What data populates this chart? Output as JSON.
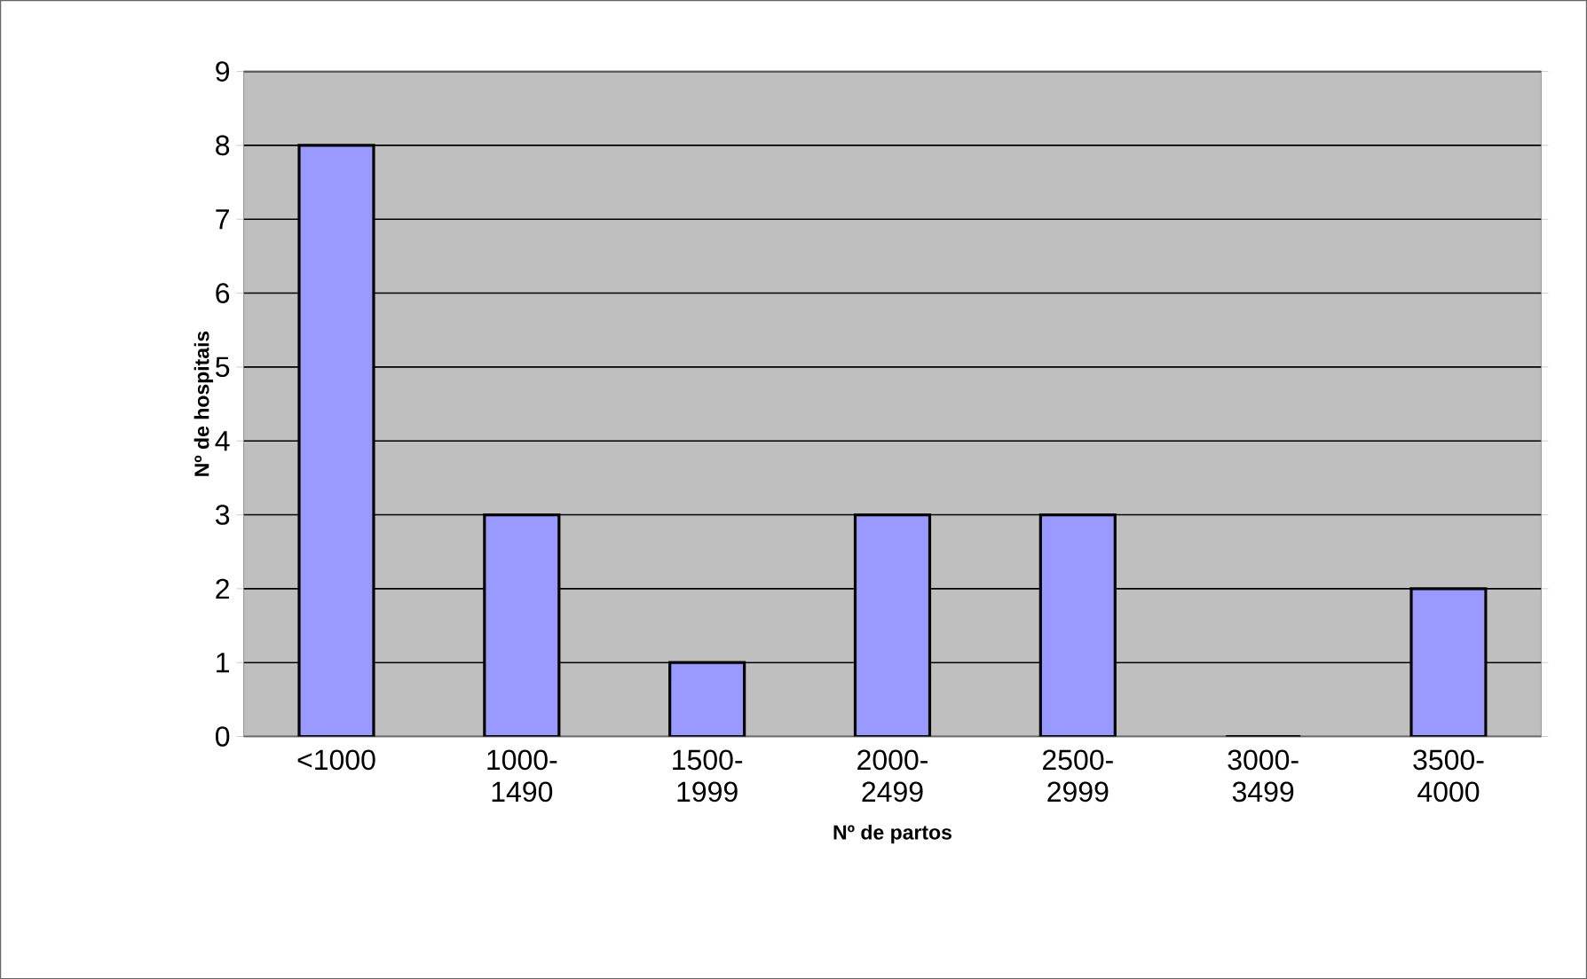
{
  "chart_data": {
    "type": "bar",
    "xlabel": "Nº de partos",
    "ylabel": "Nº de hospitais",
    "categories": [
      "<1000",
      "1000-1490",
      "1500-1999",
      "2000-2499",
      "2500-2999",
      "3000-3499",
      "3500-4000"
    ],
    "values": [
      8,
      3,
      1,
      3,
      3,
      0,
      2
    ],
    "color": "#9999ff",
    "ylim": [
      0,
      9
    ],
    "yticks": [
      0,
      1,
      2,
      3,
      4,
      5,
      6,
      7,
      8,
      9
    ],
    "grid": "y"
  }
}
